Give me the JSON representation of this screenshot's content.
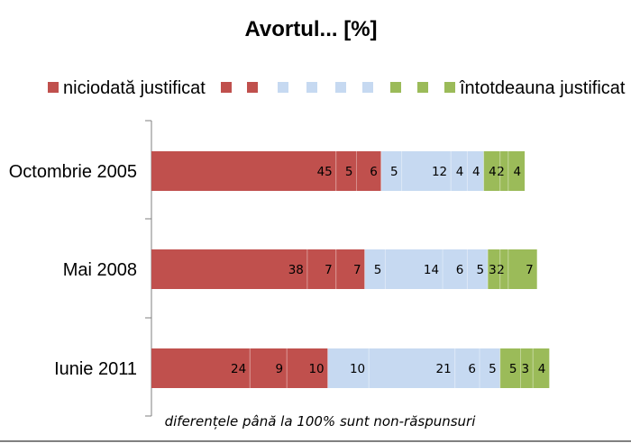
{
  "chart_data": {
    "type": "bar",
    "orientation": "horizontal",
    "stacked": true,
    "title": "Avortul... [%]",
    "categories": [
      "Octombrie 2005",
      "Mai 2008",
      "Iunie 2011"
    ],
    "series": [
      {
        "name": "niciodată justificat",
        "values": [
          45,
          38,
          24
        ]
      },
      {
        "values": [
          5,
          7,
          9
        ]
      },
      {
        "values": [
          6,
          7,
          10
        ]
      },
      {
        "values": [
          5,
          5,
          10
        ]
      },
      {
        "values": [
          12,
          14,
          21
        ]
      },
      {
        "values": [
          4,
          6,
          6
        ]
      },
      {
        "values": [
          4,
          5,
          5
        ]
      },
      {
        "values": [
          4,
          3,
          5
        ]
      },
      {
        "values": [
          2,
          2,
          3
        ]
      },
      {
        "name": "întotdeauna justificat",
        "values": [
          4,
          7,
          4
        ]
      }
    ],
    "series_colors": [
      "#c0504d",
      "#c0504d",
      "#c0504d",
      "#c6d9f1",
      "#c6d9f1",
      "#c6d9f1",
      "#c6d9f1",
      "#9bbb59",
      "#9bbb59",
      "#9bbb59"
    ],
    "xlim": [
      0,
      100
    ],
    "legend_position": "top",
    "grid": false,
    "annotation": "diferențele până la 100% sunt non-răspunsuri"
  }
}
